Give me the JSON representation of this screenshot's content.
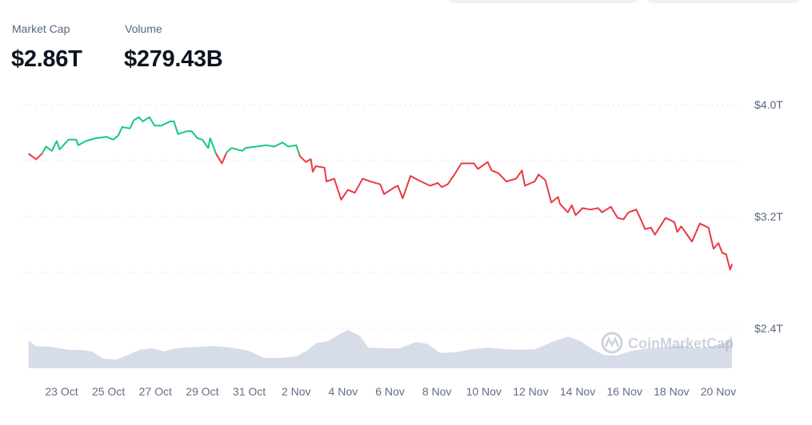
{
  "stats": {
    "market_cap_label": "Market Cap",
    "market_cap_value": "$2.86T",
    "volume_label": "Volume",
    "volume_value": "$279.43B"
  },
  "watermark": "CoinMarketCap",
  "colors": {
    "up": "#16c784",
    "down": "#ea3943",
    "volume": "#d3d9e6",
    "grid": "#e6e9ee"
  },
  "chart_data": {
    "type": "line",
    "title": "",
    "xlabel": "",
    "ylabel": "",
    "ylim": [
      2.4,
      4.0
    ],
    "y_unit": "T USD",
    "grid": true,
    "legend": "none",
    "color_rule": "green above starting value, red below",
    "y_ticks": [
      {
        "value": 4.0,
        "label": "$4.0T"
      },
      {
        "value": 3.6,
        "label": ""
      },
      {
        "value": 3.2,
        "label": "$3.2T"
      },
      {
        "value": 2.8,
        "label": ""
      },
      {
        "value": 2.4,
        "label": "$2.4T"
      }
    ],
    "x_ticks": [
      "23 Oct",
      "25 Oct",
      "27 Oct",
      "29 Oct",
      "31 Oct",
      "2 Nov",
      "4 Nov",
      "6 Nov",
      "8 Nov",
      "10 Nov",
      "12 Nov",
      "14 Nov",
      "16 Nov",
      "18 Nov",
      "20 Nov"
    ],
    "series": [
      {
        "points": [
          [
            "21 Oct 14:00",
            3.65
          ],
          [
            "21 Oct 22:00",
            3.61
          ],
          [
            "22 Oct 04:00",
            3.65
          ],
          [
            "22 Oct 08:00",
            3.7
          ],
          [
            "22 Oct 14:00",
            3.67
          ],
          [
            "22 Oct 19:00",
            3.74
          ],
          [
            "22 Oct 22:00",
            3.68
          ],
          [
            "23 Oct 07:00",
            3.75
          ],
          [
            "23 Oct 15:00",
            3.75
          ],
          [
            "23 Oct 17:00",
            3.71
          ],
          [
            "24 Oct 01:00",
            3.74
          ],
          [
            "24 Oct 11:00",
            3.76
          ],
          [
            "24 Oct 22:00",
            3.77
          ],
          [
            "25 Oct 05:00",
            3.75
          ],
          [
            "25 Oct 10:00",
            3.78
          ],
          [
            "25 Oct 14:00",
            3.84
          ],
          [
            "25 Oct 22:00",
            3.83
          ],
          [
            "26 Oct 02:00",
            3.89
          ],
          [
            "26 Oct 07:00",
            3.91
          ],
          [
            "26 Oct 11:00",
            3.88
          ],
          [
            "26 Oct 18:00",
            3.91
          ],
          [
            "26 Oct 23:00",
            3.85
          ],
          [
            "27 Oct 06:00",
            3.85
          ],
          [
            "27 Oct 15:00",
            3.88
          ],
          [
            "27 Oct 19:00",
            3.88
          ],
          [
            "27 Oct 23:00",
            3.79
          ],
          [
            "28 Oct 08:00",
            3.81
          ],
          [
            "28 Oct 13:00",
            3.81
          ],
          [
            "28 Oct 19:00",
            3.76
          ],
          [
            "29 Oct 00:00",
            3.75
          ],
          [
            "29 Oct 06:00",
            3.69
          ],
          [
            "29 Oct 08:00",
            3.76
          ],
          [
            "29 Oct 14:00",
            3.65
          ],
          [
            "29 Oct 20:00",
            3.58
          ],
          [
            "30 Oct 01:00",
            3.66
          ],
          [
            "30 Oct 06:00",
            3.69
          ],
          [
            "30 Oct 17:00",
            3.67
          ],
          [
            "30 Oct 20:00",
            3.69
          ],
          [
            "31 Oct 07:00",
            3.7
          ],
          [
            "31 Oct 18:00",
            3.71
          ],
          [
            "1 Nov 02:00",
            3.7
          ],
          [
            "1 Nov 10:00",
            3.73
          ],
          [
            "1 Nov 16:00",
            3.7
          ],
          [
            "2 Nov 00:00",
            3.71
          ],
          [
            "2 Nov 04:00",
            3.63
          ],
          [
            "2 Nov 10:00",
            3.59
          ],
          [
            "2 Nov 15:00",
            3.61
          ],
          [
            "2 Nov 17:00",
            3.52
          ],
          [
            "2 Nov 20:00",
            3.56
          ],
          [
            "3 Nov 05:00",
            3.55
          ],
          [
            "3 Nov 07:00",
            3.45
          ],
          [
            "3 Nov 15:00",
            3.47
          ],
          [
            "3 Nov 22:00",
            3.32
          ],
          [
            "4 Nov 05:00",
            3.39
          ],
          [
            "4 Nov 12:00",
            3.37
          ],
          [
            "4 Nov 20:00",
            3.47
          ],
          [
            "5 Nov 04:00",
            3.45
          ],
          [
            "5 Nov 14:00",
            3.43
          ],
          [
            "5 Nov 18:00",
            3.36
          ],
          [
            "6 Nov 05:00",
            3.41
          ],
          [
            "6 Nov 08:00",
            3.42
          ],
          [
            "6 Nov 13:00",
            3.33
          ],
          [
            "6 Nov 21:00",
            3.49
          ],
          [
            "7 Nov 05:00",
            3.46
          ],
          [
            "7 Nov 17:00",
            3.42
          ],
          [
            "8 Nov 01:00",
            3.44
          ],
          [
            "8 Nov 05:00",
            3.41
          ],
          [
            "8 Nov 11:00",
            3.43
          ],
          [
            "8 Nov 18:00",
            3.5
          ],
          [
            "9 Nov 01:00",
            3.58
          ],
          [
            "9 Nov 14:00",
            3.58
          ],
          [
            "9 Nov 18:00",
            3.54
          ],
          [
            "10 Nov 04:00",
            3.59
          ],
          [
            "10 Nov 08:00",
            3.53
          ],
          [
            "10 Nov 15:00",
            3.51
          ],
          [
            "10 Nov 23:00",
            3.45
          ],
          [
            "11 Nov 09:00",
            3.47
          ],
          [
            "11 Nov 15:00",
            3.53
          ],
          [
            "11 Nov 18:00",
            3.42
          ],
          [
            "12 Nov 04:00",
            3.45
          ],
          [
            "12 Nov 08:00",
            3.5
          ],
          [
            "12 Nov 15:00",
            3.46
          ],
          [
            "12 Nov 21:00",
            3.3
          ],
          [
            "13 Nov 04:00",
            3.34
          ],
          [
            "13 Nov 06:00",
            3.29
          ],
          [
            "13 Nov 14:00",
            3.23
          ],
          [
            "13 Nov 18:00",
            3.28
          ],
          [
            "13 Nov 22:00",
            3.21
          ],
          [
            "14 Nov 05:00",
            3.26
          ],
          [
            "14 Nov 13:00",
            3.25
          ],
          [
            "14 Nov 21:00",
            3.26
          ],
          [
            "15 Nov 01:00",
            3.23
          ],
          [
            "15 Nov 10:00",
            3.27
          ],
          [
            "15 Nov 17:00",
            3.19
          ],
          [
            "15 Nov 23:00",
            3.18
          ],
          [
            "16 Nov 04:00",
            3.23
          ],
          [
            "16 Nov 12:00",
            3.25
          ],
          [
            "16 Nov 16:00",
            3.19
          ],
          [
            "16 Nov 21:00",
            3.11
          ],
          [
            "17 Nov 03:00",
            3.12
          ],
          [
            "17 Nov 07:00",
            3.07
          ],
          [
            "17 Nov 18:00",
            3.19
          ],
          [
            "18 Nov 03:00",
            3.16
          ],
          [
            "18 Nov 06:00",
            3.09
          ],
          [
            "18 Nov 10:00",
            3.13
          ],
          [
            "18 Nov 17:00",
            3.06
          ],
          [
            "18 Nov 21:00",
            3.02
          ],
          [
            "19 Nov 05:00",
            3.15
          ],
          [
            "19 Nov 14:00",
            3.12
          ],
          [
            "19 Nov 19:00",
            2.97
          ],
          [
            "20 Nov 00:00",
            3.01
          ],
          [
            "20 Nov 04:00",
            2.94
          ],
          [
            "20 Nov 08:00",
            2.93
          ],
          [
            "20 Nov 12:00",
            2.82
          ],
          [
            "20 Nov 14:00",
            2.86
          ]
        ]
      }
    ],
    "volume_relative": [
      [
        "21 Oct 14:00",
        0.73
      ],
      [
        "21 Oct 22:00",
        0.58
      ],
      [
        "22 Oct 14:00",
        0.56
      ],
      [
        "23 Oct 07:00",
        0.48
      ],
      [
        "23 Oct 19:00",
        0.48
      ],
      [
        "24 Oct 07:00",
        0.44
      ],
      [
        "24 Oct 19:00",
        0.25
      ],
      [
        "25 Oct 08:00",
        0.23
      ],
      [
        "25 Oct 20:00",
        0.35
      ],
      [
        "26 Oct 08:00",
        0.48
      ],
      [
        "26 Oct 20:00",
        0.52
      ],
      [
        "27 Oct 09:00",
        0.44
      ],
      [
        "27 Oct 21:00",
        0.52
      ],
      [
        "28 Oct 18:00",
        0.56
      ],
      [
        "29 Oct 14:00",
        0.58
      ],
      [
        "30 Oct 06:00",
        0.54
      ],
      [
        "30 Oct 23:00",
        0.46
      ],
      [
        "31 Oct 15:00",
        0.27
      ],
      [
        "1 Nov 08:00",
        0.27
      ],
      [
        "2 Nov 00:00",
        0.31
      ],
      [
        "2 Nov 12:00",
        0.48
      ],
      [
        "2 Nov 20:00",
        0.65
      ],
      [
        "3 Nov 09:00",
        0.71
      ],
      [
        "3 Nov 21:00",
        0.9
      ],
      [
        "4 Nov 05:00",
        1.0
      ],
      [
        "4 Nov 17:00",
        0.85
      ],
      [
        "5 Nov 02:00",
        0.54
      ],
      [
        "5 Nov 18:00",
        0.52
      ],
      [
        "6 Nov 10:00",
        0.52
      ],
      [
        "7 Nov 03:00",
        0.69
      ],
      [
        "7 Nov 15:00",
        0.63
      ],
      [
        "8 Nov 03:00",
        0.4
      ],
      [
        "8 Nov 20:00",
        0.42
      ],
      [
        "9 Nov 12:00",
        0.5
      ],
      [
        "10 Nov 04:00",
        0.54
      ],
      [
        "10 Nov 21:00",
        0.5
      ],
      [
        "11 Nov 13:00",
        0.48
      ],
      [
        "12 Nov 05:00",
        0.5
      ],
      [
        "12 Nov 22:00",
        0.69
      ],
      [
        "13 Nov 14:00",
        0.83
      ],
      [
        "14 Nov 03:00",
        0.71
      ],
      [
        "14 Nov 15:00",
        0.5
      ],
      [
        "15 Nov 03:00",
        0.35
      ],
      [
        "15 Nov 15:00",
        0.33
      ],
      [
        "16 Nov 08:00",
        0.46
      ],
      [
        "17 Nov 00:00",
        0.52
      ],
      [
        "17 Nov 16:00",
        0.54
      ],
      [
        "18 Nov 09:00",
        0.6
      ],
      [
        "19 Nov 01:00",
        0.52
      ],
      [
        "19 Nov 18:00",
        0.56
      ],
      [
        "20 Nov 06:00",
        0.65
      ],
      [
        "20 Nov 14:00",
        0.85
      ]
    ]
  }
}
